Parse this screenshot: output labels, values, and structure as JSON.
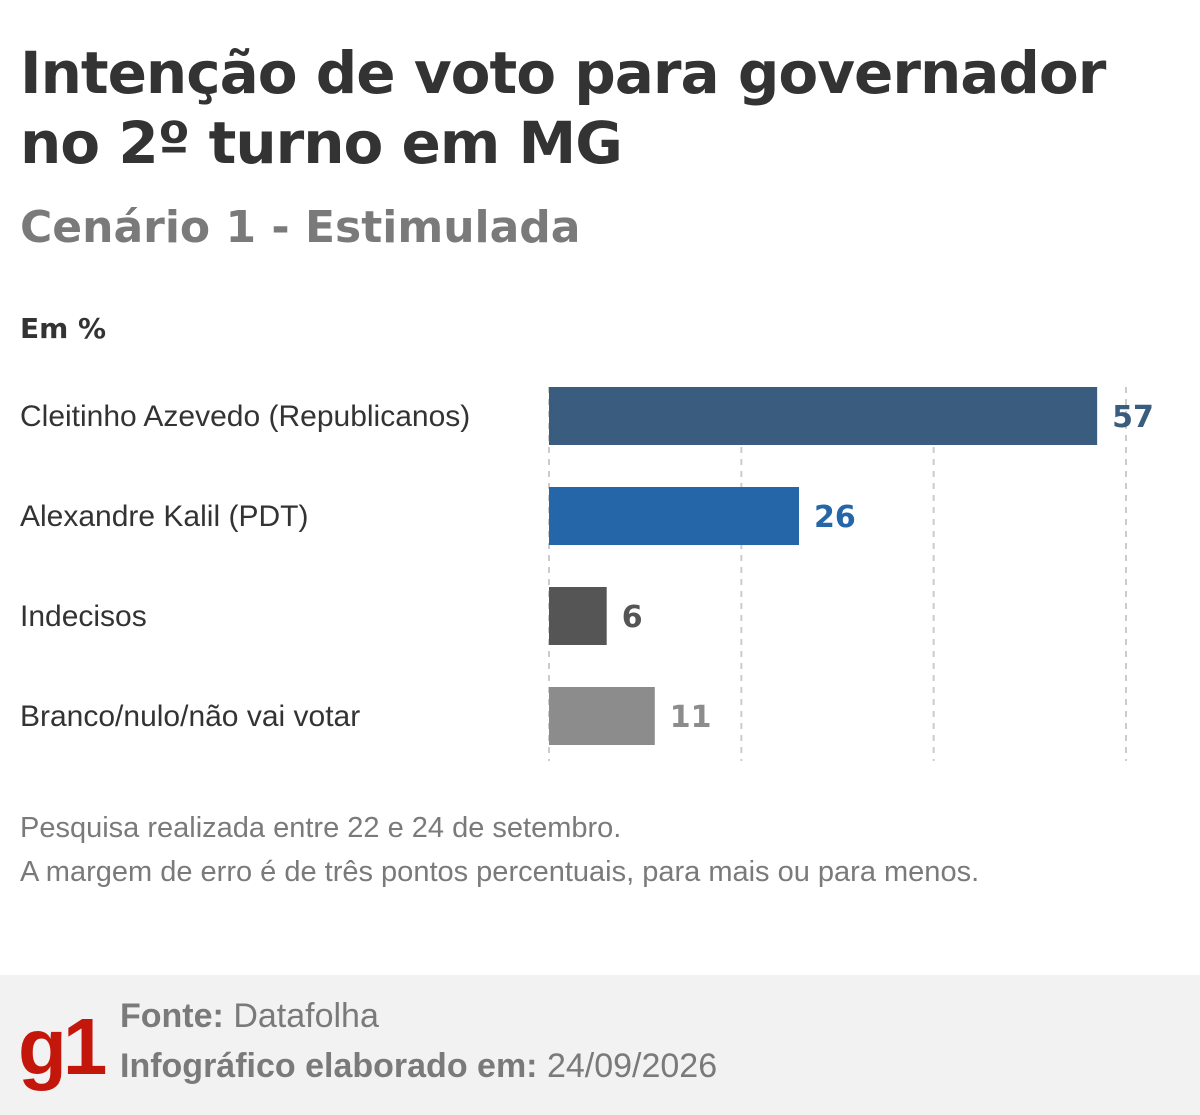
{
  "header": {
    "title": "Intenção de voto para governador no 2º turno em MG",
    "subtitle": "Cenário 1 - Estimulada",
    "unit": "Em %"
  },
  "chart_data": {
    "type": "bar",
    "orientation": "horizontal",
    "title": "Intenção de voto para governador no 2º turno em MG",
    "subtitle": "Cenário 1 - Estimulada",
    "categories": [
      "Cleitinho Azevedo (Republicanos)",
      "Alexandre Kalil (PDT)",
      "Indecisos",
      "Branco/nulo/não vai votar"
    ],
    "values": [
      57,
      26,
      6,
      11
    ],
    "colors": [
      "#3a5c7e",
      "#2466a8",
      "#555555",
      "#8c8c8c"
    ],
    "label_colors": [
      "#3a5c7e",
      "#2466a8",
      "#555555",
      "#8c8c8c"
    ],
    "xlim": [
      0,
      60
    ],
    "gridlines": [
      0,
      20,
      40,
      60
    ],
    "grid": true,
    "grid_style": "dashed",
    "legend": "none"
  },
  "notes": {
    "line1": "Pesquisa realizada entre 22 e 24 de setembro.",
    "line2": "A margem de erro é de três pontos percentuais, para mais ou para menos."
  },
  "footer": {
    "logo": "g1",
    "source_label": "Fonte:",
    "source_value": "Datafolha",
    "date_label": "Infográfico elaborado em:",
    "date_value": "24/09/2026"
  },
  "colors": {
    "title": "#333333",
    "subtitle": "#7a7a7a",
    "brand": "#c4170c",
    "footer_bg": "#f2f2f2"
  }
}
